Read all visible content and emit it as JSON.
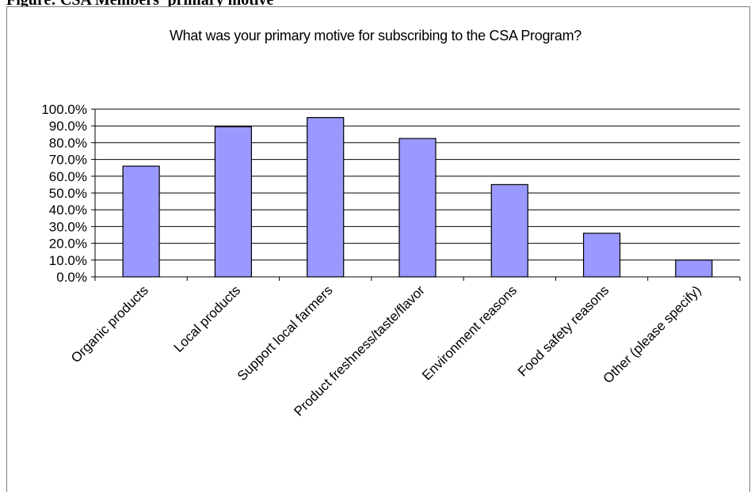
{
  "caption": "Figure: CSA Members' primary motive",
  "chart_data": {
    "type": "bar",
    "title": "What was your primary motive for subscribing to the CSA Program?",
    "xlabel": "",
    "ylabel": "",
    "categories": [
      "Organic products",
      "Local products",
      "Support local farmers",
      "Product freshness/taste/flavor",
      "Environment reasons",
      "Food safety reasons",
      "Other (please specify)"
    ],
    "values": [
      66.0,
      89.5,
      95.0,
      82.5,
      55.0,
      26.0,
      10.0
    ],
    "ylim": [
      0,
      100
    ],
    "yticks": [
      "0.0%",
      "10.0%",
      "20.0%",
      "30.0%",
      "40.0%",
      "50.0%",
      "60.0%",
      "70.0%",
      "80.0%",
      "90.0%",
      "100.0%"
    ],
    "grid": true,
    "legend": "none",
    "colors": {
      "bar_fill": "#9999ff",
      "bar_stroke": "#000000",
      "gridline": "#000000"
    }
  }
}
